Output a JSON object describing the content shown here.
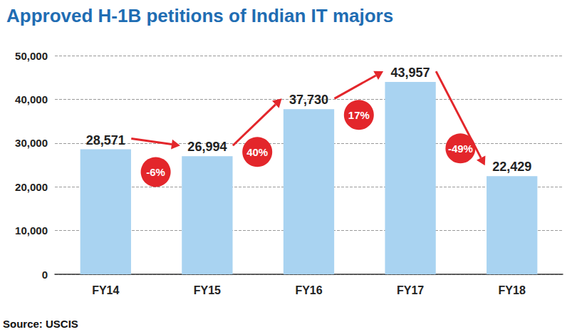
{
  "chart_data": {
    "type": "bar",
    "title": "Approved H-1B petitions of Indian IT majors",
    "categories": [
      "FY14",
      "FY15",
      "FY16",
      "FY17",
      "FY18"
    ],
    "values": [
      28571,
      26994,
      37730,
      43957,
      22429
    ],
    "value_labels": [
      "28,571",
      "26,994",
      "37,730",
      "43,957",
      "22,429"
    ],
    "color": "#a9d3f1",
    "ylim": [
      0,
      50000
    ],
    "yticks": [
      0,
      {
        "value": 10000,
        "label": "10,000"
      },
      {
        "value": 20000,
        "label": "20,000"
      },
      {
        "value": 30000,
        "label": "30,000"
      },
      {
        "value": 40000,
        "label": "40,000"
      },
      {
        "value": 50000,
        "label": "50,000"
      }
    ],
    "grid": true,
    "data_labels": true,
    "annotations": [
      "-6%",
      "40%",
      "17%",
      "-49%"
    ],
    "source": "Source: USCIS"
  }
}
